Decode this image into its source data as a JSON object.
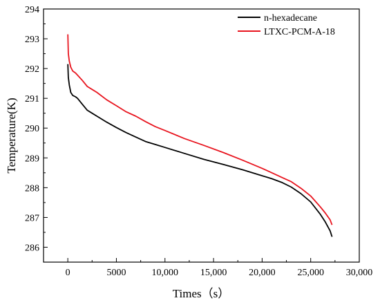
{
  "chart_data": {
    "type": "line",
    "xlabel": "Times（s）",
    "ylabel": "Temperature(K)",
    "xlim": [
      -2500,
      30000
    ],
    "ylim": [
      285.5,
      294
    ],
    "x_ticks": [
      0,
      5000,
      10000,
      15000,
      20000,
      25000,
      30000
    ],
    "x_tick_labels": [
      "0",
      "5000",
      "10,000",
      "15,000",
      "20,000",
      "25,000",
      "30,000"
    ],
    "y_ticks": [
      286,
      287,
      288,
      289,
      290,
      291,
      292,
      293,
      294
    ],
    "y_tick_labels": [
      "286",
      "287",
      "288",
      "289",
      "290",
      "291",
      "292",
      "293",
      "294"
    ],
    "grid": false,
    "legend_position": "top-right",
    "series": [
      {
        "name": "n-hexadecane",
        "color": "#000000",
        "x": [
          0,
          50,
          150,
          300,
          500,
          800,
          1000,
          1500,
          2000,
          2500,
          3000,
          4000,
          5000,
          6000,
          7000,
          8000,
          9000,
          10000,
          12000,
          14000,
          16000,
          18000,
          20000,
          21000,
          22000,
          23000,
          24000,
          25000,
          26000,
          26500,
          27000,
          27200
        ],
        "y": [
          292.15,
          291.7,
          291.45,
          291.2,
          291.1,
          291.05,
          291.0,
          290.8,
          290.6,
          290.5,
          290.4,
          290.2,
          290.02,
          289.85,
          289.7,
          289.55,
          289.45,
          289.35,
          289.15,
          288.95,
          288.78,
          288.6,
          288.4,
          288.3,
          288.18,
          288.02,
          287.8,
          287.52,
          287.1,
          286.85,
          286.55,
          286.35
        ]
      },
      {
        "name": "LTXC-PCM-A-18",
        "color": "#e8141e",
        "x": [
          0,
          50,
          150,
          300,
          500,
          800,
          1000,
          1500,
          2000,
          2500,
          3000,
          4000,
          5000,
          6000,
          7000,
          8000,
          9000,
          10000,
          12000,
          14000,
          16000,
          18000,
          20000,
          21000,
          22000,
          23000,
          24000,
          25000,
          26000,
          26500,
          27000,
          27200
        ],
        "y": [
          293.15,
          292.5,
          292.25,
          292.05,
          291.92,
          291.85,
          291.78,
          291.6,
          291.4,
          291.3,
          291.2,
          290.95,
          290.75,
          290.55,
          290.4,
          290.22,
          290.05,
          289.92,
          289.65,
          289.42,
          289.18,
          288.92,
          288.65,
          288.5,
          288.35,
          288.2,
          287.98,
          287.72,
          287.35,
          287.15,
          286.92,
          286.75
        ]
      }
    ]
  }
}
